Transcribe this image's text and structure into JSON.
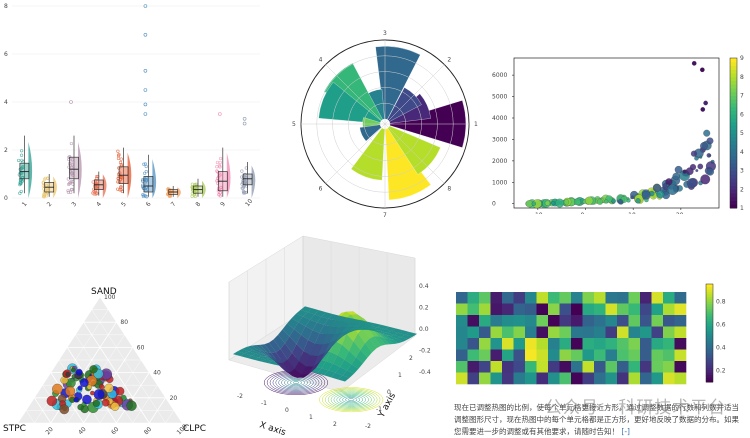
{
  "colors": {
    "viridis": [
      "#440154",
      "#3b528b",
      "#21918c",
      "#5ec962",
      "#fde725"
    ],
    "raincloud": [
      "#2a9d8f",
      "#e9c46a",
      "#b392ac",
      "#e76f51",
      "#e4572e",
      "#4f8fc0",
      "#f4a261",
      "#a7c957",
      "#f28ab2",
      "#8d99ae"
    ]
  },
  "chart_data": [
    {
      "id": "raincloud",
      "type": "box",
      "categories": [
        "1",
        "2",
        "3",
        "4",
        "5",
        "6",
        "7",
        "8",
        "9",
        "10"
      ],
      "ylim": [
        0,
        8
      ],
      "yticks": [
        0,
        2,
        4,
        6,
        8
      ],
      "series": [
        {
          "name": "1",
          "q1": 0.8,
          "median": 1.1,
          "q3": 1.45,
          "whisker_low": 0.2,
          "whisker_high": 2.6
        },
        {
          "name": "2",
          "q1": 0.25,
          "median": 0.45,
          "q3": 0.65,
          "whisker_low": 0.05,
          "whisker_high": 1.0
        },
        {
          "name": "3",
          "q1": 0.8,
          "median": 1.2,
          "q3": 1.7,
          "whisker_low": 0.2,
          "whisker_high": 2.6
        },
        {
          "name": "4",
          "q1": 0.35,
          "median": 0.55,
          "q3": 0.75,
          "whisker_low": 0.1,
          "whisker_high": 1.1
        },
        {
          "name": "5",
          "q1": 0.6,
          "median": 0.95,
          "q3": 1.3,
          "whisker_low": 0.2,
          "whisker_high": 2.1
        },
        {
          "name": "6",
          "q1": 0.25,
          "median": 0.5,
          "q3": 0.9,
          "whisker_low": 0.05,
          "whisker_high": 1.8
        },
        {
          "name": "7",
          "q1": 0.15,
          "median": 0.25,
          "q3": 0.35,
          "whisker_low": 0.05,
          "whisker_high": 0.5
        },
        {
          "name": "8",
          "q1": 0.2,
          "median": 0.35,
          "q3": 0.5,
          "whisker_low": 0.05,
          "whisker_high": 0.8
        },
        {
          "name": "9",
          "q1": 0.3,
          "median": 0.7,
          "q3": 1.1,
          "whisker_low": 0.05,
          "whisker_high": 2.1
        },
        {
          "name": "10",
          "q1": 0.55,
          "median": 0.8,
          "q3": 1.0,
          "whisker_low": 0.2,
          "whisker_high": 1.5
        }
      ],
      "outliers": [
        [
          3,
          4.0
        ],
        [
          6,
          8.0
        ],
        [
          6,
          6.8
        ],
        [
          6,
          5.3
        ],
        [
          6,
          4.5
        ],
        [
          6,
          3.9
        ],
        [
          6,
          3.5
        ],
        [
          9,
          3.5
        ],
        [
          10,
          3.1
        ],
        [
          10,
          3.3
        ]
      ]
    },
    {
      "id": "polar",
      "type": "polar-bar",
      "angle_ticks": [
        "1",
        "2",
        "3",
        "4",
        "5",
        "6",
        "7",
        "8"
      ],
      "rlim": [
        0,
        10
      ],
      "bars": [
        {
          "theta_deg": 0,
          "r": 9.6,
          "color": "#440154"
        },
        {
          "theta_deg": 24,
          "r": 5.2,
          "color": "#482878"
        },
        {
          "theta_deg": 45,
          "r": 4.6,
          "color": "#3e4a89"
        },
        {
          "theta_deg": 80,
          "r": 9.2,
          "color": "#31688e"
        },
        {
          "theta_deg": 112,
          "r": 3.8,
          "color": "#26828e"
        },
        {
          "theta_deg": 135,
          "r": 8.1,
          "color": "#35b779"
        },
        {
          "theta_deg": 158,
          "r": 7.8,
          "color": "#1f9e89"
        },
        {
          "theta_deg": 180,
          "r": 2.2,
          "color": "#6ece58"
        },
        {
          "theta_deg": 205,
          "r": 2.6,
          "color": "#31688e"
        },
        {
          "theta_deg": 250,
          "r": 6.5,
          "color": "#b5de2b"
        },
        {
          "theta_deg": 290,
          "r": 9.0,
          "color": "#fde725"
        },
        {
          "theta_deg": 320,
          "r": 7.0,
          "color": "#b5de2b"
        }
      ]
    },
    {
      "id": "bubble",
      "type": "scatter",
      "xlim": [
        -15,
        28
      ],
      "ylim": [
        -200,
        6800
      ],
      "xticks": [
        -10,
        0,
        10,
        20
      ],
      "yticks": [
        0,
        1000,
        2000,
        3000,
        4000,
        5000,
        6000
      ],
      "colorbar": {
        "min": 1,
        "max": 9,
        "ticks": [
          1,
          2,
          3,
          4,
          5,
          6,
          7,
          8,
          9
        ]
      }
    },
    {
      "id": "ternary",
      "type": "scatter",
      "axes": {
        "top": "SAND",
        "left": "STPC",
        "right": "CLPC"
      },
      "ticks": [
        "20",
        "40",
        "60",
        "80",
        "100"
      ]
    },
    {
      "id": "surface3d",
      "type": "surface",
      "xlabel": "X axis",
      "ylabel": "Y axis",
      "xticks": [
        "-2",
        "-1",
        "0",
        "1",
        "2"
      ],
      "yticks": [
        "-2",
        "-1",
        "0",
        "1",
        "2"
      ],
      "zticks": [
        "-0.4",
        "-0.2",
        "0.0",
        "0.2",
        "0.4"
      ]
    },
    {
      "id": "heatmap",
      "type": "heatmap",
      "rows": 8,
      "cols": 20,
      "colorbar": {
        "min": 0.1,
        "max": 0.95,
        "ticks": [
          "0.2",
          "0.4",
          "0.6",
          "0.8"
        ]
      }
    }
  ],
  "caption": {
    "text": "现在已调整热图的比例，使每个单元格更接近方形，通过调整数据的行数和列数并适当调整图形尺寸，现在热图中的每个单元格都是正方形，更好地反映了数据的分布。如果您需要进一步的调整或有其他要求，请随时告知！",
    "link": "[-]"
  },
  "watermark": "公众号 · 科研技术平台"
}
